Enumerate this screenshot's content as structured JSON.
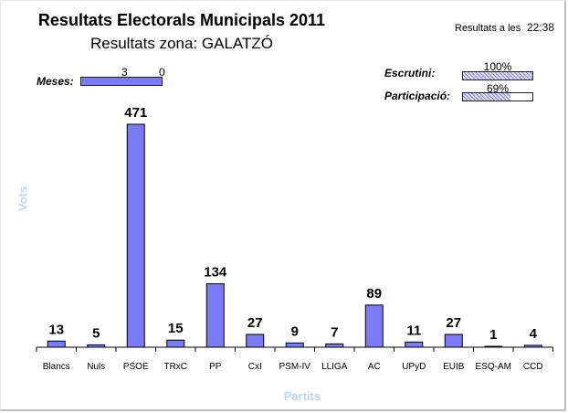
{
  "header": {
    "title": "Resultats Electorals Municipals 2011",
    "subtitle": "Resultats zona: GALATZÓ",
    "time_label": "Resultats a les",
    "time_value": "22:38"
  },
  "status": {
    "meses_label": "Meses:",
    "meses_left": "3",
    "meses_right": "0",
    "escrutini_label": "Escrutini:",
    "escrutini_pct": 100,
    "escrutini_text": "100%",
    "participacio_label": "Participació:",
    "participacio_pct": 69,
    "participacio_text": "69%"
  },
  "colors": {
    "bar": "#7b7bf7",
    "axis_label": "#b8d8ee"
  },
  "chart_data": {
    "type": "bar",
    "title": "Resultats Electorals Municipals 2011",
    "subtitle": "Resultats zona: GALATZÓ",
    "xlabel": "Partits",
    "ylabel": "Vots",
    "categories": [
      "Blancs",
      "Nuls",
      "PSOE",
      "TRxC",
      "PP",
      "CxI",
      "PSM-IV",
      "LLIGA",
      "AC",
      "UPyD",
      "EUIB",
      "ESQ-AM",
      "CCD"
    ],
    "values": [
      13,
      5,
      471,
      15,
      134,
      27,
      9,
      7,
      89,
      11,
      27,
      1,
      4
    ],
    "ylim": [
      0,
      471
    ],
    "grid": false,
    "legend": "none"
  }
}
